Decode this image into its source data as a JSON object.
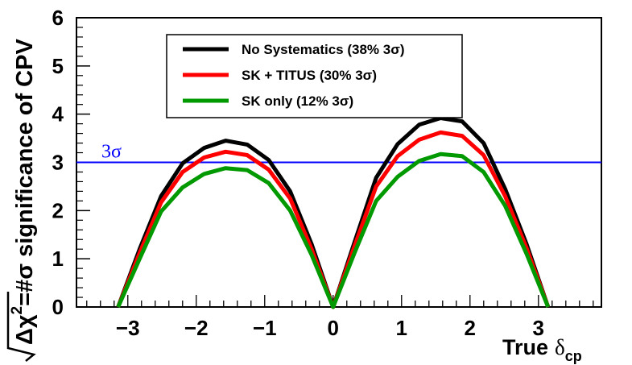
{
  "chart_data": {
    "type": "line",
    "xlabel": "True",
    "xlabel_symbol": "δ",
    "xlabel_subscript": "cp",
    "ylabel_root": "Δχ",
    "ylabel_exp": "2",
    "ylabel_rest": "=#σ significance of CPV",
    "xlim": [
      -3.75,
      3.92
    ],
    "ylim": [
      0,
      6
    ],
    "x_ticks": [
      -3,
      -2,
      -1,
      0,
      1,
      2,
      3
    ],
    "x_tick_labels": [
      "−3",
      "−2",
      "−1",
      "0",
      "1",
      "2",
      "3"
    ],
    "y_ticks": [
      0,
      1,
      2,
      3,
      4,
      5,
      6
    ],
    "y_tick_labels": [
      "0",
      "1",
      "2",
      "3",
      "4",
      "5",
      "6"
    ],
    "x": [
      -3.1416,
      -2.8274,
      -2.5133,
      -2.1991,
      -1.885,
      -1.5708,
      -1.2566,
      -0.9425,
      -0.6283,
      -0.3142,
      0.0,
      0.3142,
      0.6283,
      0.9425,
      1.2566,
      1.5708,
      1.885,
      2.1991,
      2.5133,
      2.8274,
      3.1416
    ],
    "series": [
      {
        "name": "No Systematics (38% 3σ)",
        "color": "#000000",
        "values": [
          0.0,
          1.2,
          2.3,
          2.98,
          3.3,
          3.45,
          3.37,
          3.05,
          2.4,
          1.3,
          0.0,
          1.35,
          2.68,
          3.38,
          3.78,
          3.92,
          3.85,
          3.4,
          2.45,
          1.3,
          0.0
        ]
      },
      {
        "name": "SK + TITUS (30% 3σ)",
        "color": "#ff0000",
        "values": [
          0.0,
          1.12,
          2.17,
          2.8,
          3.1,
          3.22,
          3.15,
          2.85,
          2.25,
          1.2,
          0.0,
          1.27,
          2.5,
          3.13,
          3.47,
          3.62,
          3.55,
          3.15,
          2.3,
          1.22,
          0.0
        ]
      },
      {
        "name": "SK only (12% 3σ)",
        "color": "#009900",
        "values": [
          0.0,
          1.0,
          1.98,
          2.48,
          2.76,
          2.88,
          2.84,
          2.57,
          2.0,
          1.08,
          0.0,
          1.13,
          2.2,
          2.7,
          3.03,
          3.17,
          3.13,
          2.8,
          2.1,
          1.1,
          0.0
        ]
      }
    ],
    "reference_line": {
      "y": 3,
      "label": "3σ",
      "color": "#0000ff"
    },
    "legend_position": "top-center"
  }
}
